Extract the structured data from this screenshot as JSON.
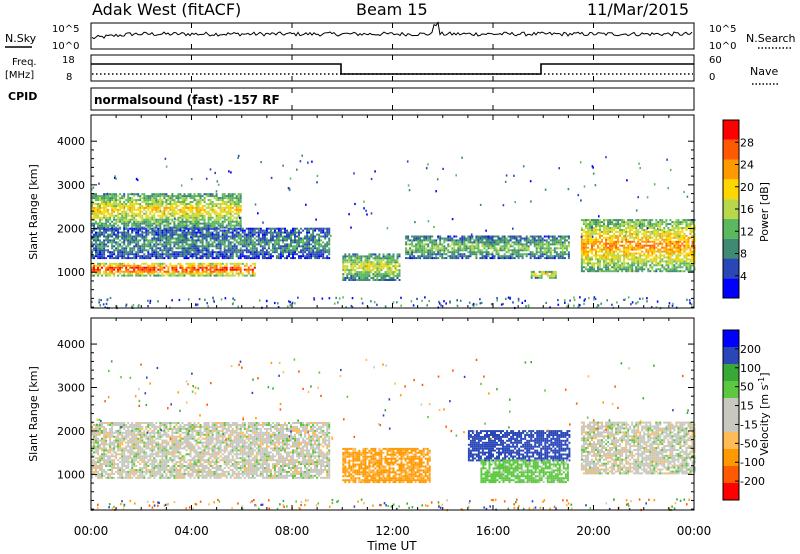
{
  "header": {
    "radar": "Adak West (fitACF)",
    "beam": "Beam 15",
    "date": "11/Mar/2015"
  },
  "top_panels": {
    "nsky_label": "N.Sky",
    "nsearch_label": "N.Search",
    "noise_ticks": [
      "10^5",
      "10^0"
    ],
    "freq_label_1": "Freq.",
    "freq_label_2": "[MHz]",
    "freq_ticks": [
      "18",
      "8"
    ],
    "nave_label": "Nave",
    "nave_ticks": [
      "60",
      "0"
    ],
    "cpid_label": "CPID",
    "cpid_text": "normalsound (fast) -157 RF"
  },
  "x_axis": {
    "label": "Time UT",
    "ticks": [
      "00:00",
      "04:00",
      "08:00",
      "12:00",
      "16:00",
      "20:00",
      "00:00"
    ],
    "range_hours": [
      0,
      24
    ]
  },
  "y_axis": {
    "label": "Slant Range [km]",
    "ticks": [
      "1000",
      "2000",
      "3000",
      "4000"
    ],
    "range_km": [
      180,
      4600
    ]
  },
  "colors": {
    "power": [
      "#0000ff",
      "#2a47b8",
      "#3f8a72",
      "#5cb85c",
      "#b8d84a",
      "#ffd700",
      "#ff9900",
      "#ff5a00",
      "#ff0000"
    ],
    "velocity": [
      "#ff0000",
      "#ff5a00",
      "#ff9900",
      "#ffbb55",
      "#c8c8c0",
      "#c8c8c0",
      "#5cc840",
      "#38a838",
      "#2a47b8",
      "#0000ff"
    ]
  },
  "power_scale": {
    "label": "Power [dB]",
    "ticks": [
      "4",
      "8",
      "12",
      "16",
      "20",
      "24",
      "28"
    ]
  },
  "velocity_scale": {
    "label": "Velocity [m s",
    "label_sup": "-1",
    "label_end": "]",
    "ticks": [
      "200",
      "100",
      "50",
      "15",
      "-15",
      "-50",
      "-100",
      "-200"
    ]
  },
  "chart_data": [
    {
      "type": "heatmap",
      "title": "Power",
      "xlabel": "Time UT",
      "ylabel": "Slant Range [km]",
      "xlim": [
        0,
        24
      ],
      "ylim": [
        180,
        4600
      ],
      "colorbar": "Power [dB]",
      "regions": [
        {
          "t": [
            0,
            6.5
          ],
          "range_km": [
            900,
            1200
          ],
          "power_db": 30
        },
        {
          "t": [
            0,
            9.5
          ],
          "range_km": [
            1300,
            2000
          ],
          "power_db": 10
        },
        {
          "t": [
            0,
            6
          ],
          "range_km": [
            2000,
            2800
          ],
          "power_db": 20
        },
        {
          "t": [
            10,
            12.3
          ],
          "range_km": [
            800,
            1400
          ],
          "power_db": 18
        },
        {
          "t": [
            12.5,
            19
          ],
          "range_km": [
            1300,
            1800
          ],
          "power_db": 14
        },
        {
          "t": [
            17.5,
            18.5
          ],
          "range_km": [
            850,
            1000
          ],
          "power_db": 22
        },
        {
          "t": [
            19.5,
            24
          ],
          "range_km": [
            1000,
            2200
          ],
          "power_db": 24
        }
      ]
    },
    {
      "type": "heatmap",
      "title": "Velocity",
      "xlabel": "Time UT",
      "ylabel": "Slant Range [km]",
      "xlim": [
        0,
        24
      ],
      "ylim": [
        180,
        4600
      ],
      "colorbar": "Velocity [m s-1]",
      "regions": [
        {
          "t": [
            0,
            9.5
          ],
          "range_km": [
            900,
            2200
          ],
          "velocity": 0
        },
        {
          "t": [
            10,
            13.5
          ],
          "range_km": [
            800,
            1600
          ],
          "velocity": -60
        },
        {
          "t": [
            15,
            19
          ],
          "range_km": [
            1300,
            2000
          ],
          "velocity": 150
        },
        {
          "t": [
            15.5,
            19
          ],
          "range_km": [
            800,
            1300
          ],
          "velocity": 30
        },
        {
          "t": [
            19.5,
            24
          ],
          "range_km": [
            1000,
            2200
          ],
          "velocity": 0
        }
      ]
    }
  ]
}
